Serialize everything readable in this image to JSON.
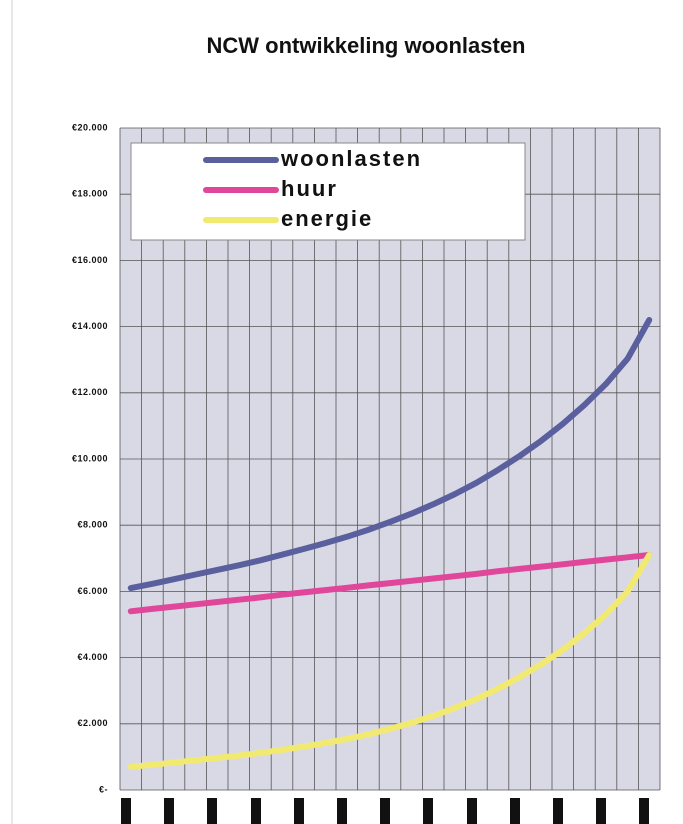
{
  "chart_data": {
    "type": "line",
    "title": "NCW ontwikkeling woonlasten",
    "categories": [
      null,
      null,
      null,
      null,
      null,
      null,
      null,
      null,
      null,
      null,
      null,
      null,
      null,
      null,
      null,
      null,
      null,
      null,
      null,
      null,
      null,
      null,
      null,
      null,
      null
    ],
    "series": [
      {
        "name": "woonlasten",
        "color": "#5a5f9e",
        "values": [
          6100,
          6230,
          6370,
          6510,
          6650,
          6790,
          6940,
          7110,
          7280,
          7460,
          7650,
          7860,
          8100,
          8350,
          8630,
          8940,
          9280,
          9670,
          10090,
          10550,
          11060,
          11630,
          12270,
          13030,
          14200
        ]
      },
      {
        "name": "huur",
        "color": "#e0479a",
        "values": [
          5400,
          5470,
          5540,
          5610,
          5680,
          5750,
          5820,
          5900,
          5970,
          6040,
          6110,
          6180,
          6250,
          6320,
          6390,
          6460,
          6530,
          6610,
          6680,
          6750,
          6820,
          6890,
          6960,
          7030,
          7100
        ]
      },
      {
        "name": "energie",
        "color": "#f2ea70",
        "values": [
          700,
          760,
          830,
          900,
          970,
          1040,
          1120,
          1210,
          1310,
          1420,
          1540,
          1680,
          1850,
          2030,
          2240,
          2480,
          2750,
          3060,
          3410,
          3800,
          4240,
          4740,
          5310,
          6000,
          7100
        ]
      }
    ],
    "ylim": [
      0,
      20000
    ],
    "yticks": [
      {
        "value": 0,
        "label": "€-"
      },
      {
        "value": 2000,
        "label": "€2.000"
      },
      {
        "value": 4000,
        "label": "€4.000"
      },
      {
        "value": 6000,
        "label": "€6.000"
      },
      {
        "value": 8000,
        "label": "€8.000"
      },
      {
        "value": 10000,
        "label": "€10.000"
      },
      {
        "value": 12000,
        "label": "€12.000"
      },
      {
        "value": 14000,
        "label": "€14.000"
      },
      {
        "value": 16000,
        "label": "€16.000"
      },
      {
        "value": 18000,
        "label": "€18.000"
      },
      {
        "value": 20000,
        "label": "€20.000"
      }
    ],
    "grid": true,
    "legend": "upper left"
  }
}
